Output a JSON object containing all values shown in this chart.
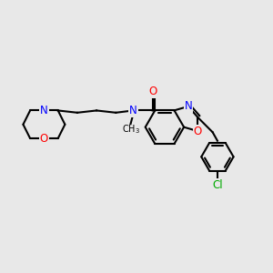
{
  "bg_color": "#e8e8e8",
  "bond_color": "#000000",
  "N_color": "#0000ff",
  "O_color": "#ff0000",
  "Cl_color": "#00aa00",
  "line_width": 1.5,
  "font_size": 8.5,
  "fig_size": [
    3.0,
    3.0
  ],
  "dpi": 100,
  "xlim": [
    0,
    10
  ],
  "ylim": [
    0,
    10
  ]
}
